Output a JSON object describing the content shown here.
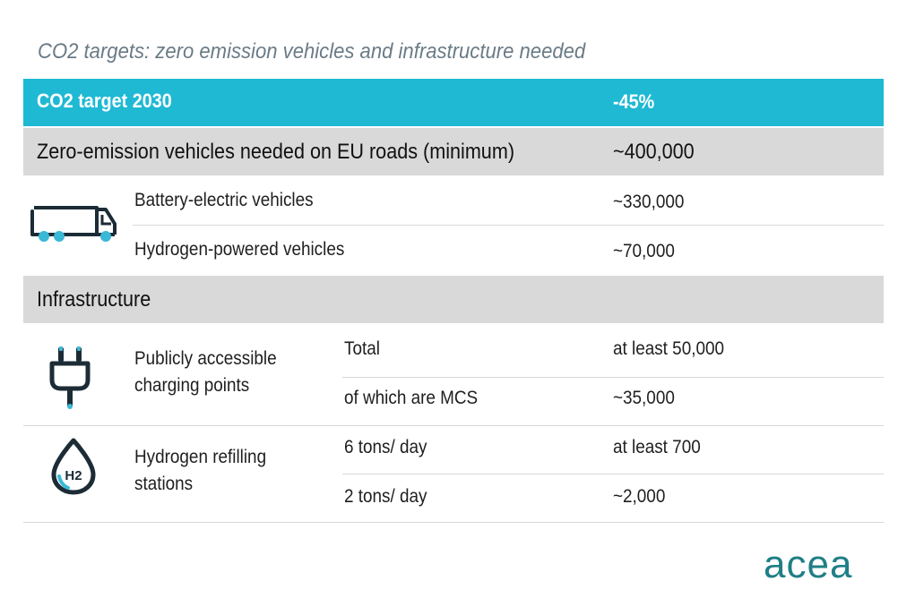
{
  "title": "CO2  targets: zero emission vehicles and infrastructure needed",
  "colors": {
    "header_band": "#1fb9d4",
    "section_band": "#d9d9d9",
    "icon_dark": "#1c2c36",
    "accent": "#3ab8d6"
  },
  "target_row": {
    "label": "CO2 target 2030",
    "value": "-45%"
  },
  "zev_row": {
    "label": "Zero-emission vehicles needed on EU roads (minimum)",
    "value": "~400,000"
  },
  "vehicles": [
    {
      "label": "Battery-electric vehicles",
      "value": "~330,000"
    },
    {
      "label": "Hydrogen-powered vehicles",
      "value": "~70,000"
    }
  ],
  "infra_row": {
    "label": "Infrastructure"
  },
  "charging": {
    "label_line1": "Publicly accessible",
    "label_line2": "charging points",
    "rows": [
      {
        "sub": "Total",
        "value": "at least 50,000"
      },
      {
        "sub": "of which are MCS",
        "value": "~35,000"
      }
    ]
  },
  "hydrogen": {
    "label_line1": "Hydrogen refilling",
    "label_line2": "stations",
    "icon_text": "H2",
    "rows": [
      {
        "sub": "6 tons/ day",
        "value": "at least 700"
      },
      {
        "sub": "2 tons/ day",
        "value": "~2,000"
      }
    ]
  },
  "logo": "acea",
  "icons": {
    "vehicles": "truck-icon",
    "charging": "plug-icon",
    "hydrogen": "hydrogen-drop-icon"
  }
}
